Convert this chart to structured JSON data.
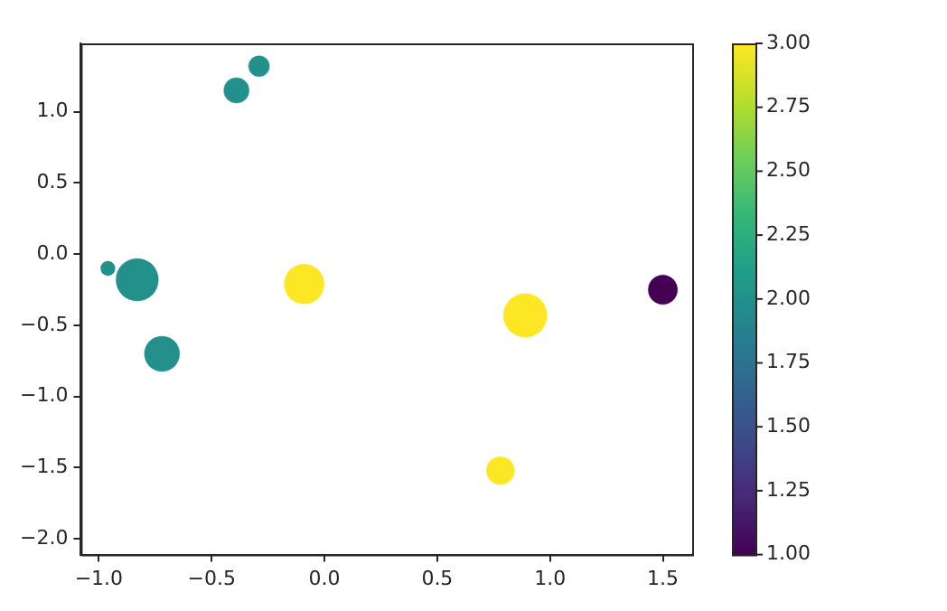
{
  "chart_data": {
    "type": "bubble",
    "x": [
      -0.29,
      -0.39,
      -0.96,
      -0.83,
      -0.72,
      -0.09,
      0.89,
      1.5,
      0.78
    ],
    "values": [
      1.32,
      1.15,
      -0.1,
      -0.18,
      -0.7,
      -0.21,
      -0.43,
      -0.25,
      -1.52
    ],
    "sizes": [
      0.24,
      0.35,
      0.12,
      0.95,
      0.66,
      0.84,
      1,
      0.46,
      0.42
    ],
    "cvalues": [
      2,
      2,
      2,
      2,
      2,
      3,
      3,
      1,
      3
    ],
    "xlim": [
      -1.08,
      1.63
    ],
    "xticks": [
      {
        "value": -1,
        "label": "−1.0"
      },
      {
        "value": -0.5,
        "label": "−0.5"
      },
      {
        "value": 0,
        "label": "0.0"
      },
      {
        "value": 0.5,
        "label": "0.5"
      },
      {
        "value": 1,
        "label": "1.0"
      },
      {
        "value": 1.5,
        "label": "1.5"
      }
    ],
    "ylim": [
      -2.11,
      1.48
    ],
    "yticks": [
      {
        "value": -2,
        "label": "−2.0"
      },
      {
        "value": -1.5,
        "label": "−1.5"
      },
      {
        "value": -1,
        "label": "−1.0"
      },
      {
        "value": -0.5,
        "label": "−0.5"
      },
      {
        "value": 0,
        "label": "0.0"
      },
      {
        "value": 0.5,
        "label": "0.5"
      },
      {
        "value": 1,
        "label": "1.0"
      }
    ],
    "clim": [
      1,
      3
    ],
    "cticks": [
      {
        "value": 1,
        "label": "1.00"
      },
      {
        "value": 1.25,
        "label": "1.25"
      },
      {
        "value": 1.5,
        "label": "1.50"
      },
      {
        "value": 1.75,
        "label": "1.75"
      },
      {
        "value": 2,
        "label": "2.00"
      },
      {
        "value": 2.25,
        "label": "2.25"
      },
      {
        "value": 2.5,
        "label": "2.50"
      },
      {
        "value": 2.75,
        "label": "2.75"
      },
      {
        "value": 3,
        "label": "3.00"
      }
    ]
  }
}
